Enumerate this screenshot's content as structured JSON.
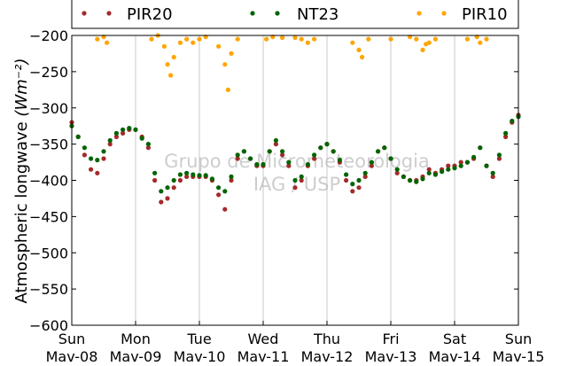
{
  "chart_data": {
    "type": "scatter",
    "title": "",
    "ylabel": "Atmospheric longwave",
    "ylabel_unit": "(Wm⁻²)",
    "ylim": [
      -600,
      -200
    ],
    "yticks": [
      -200,
      -250,
      -300,
      -350,
      -400,
      -450,
      -500,
      -550,
      -600
    ],
    "x_range_days": [
      0,
      7
    ],
    "xtick_labels": [
      {
        "day": "Sun",
        "date": "Mav-08"
      },
      {
        "day": "Mon",
        "date": "Mav-09"
      },
      {
        "day": "Tue",
        "date": "Mav-10"
      },
      {
        "day": "Wed",
        "date": "Mav-11"
      },
      {
        "day": "Thu",
        "date": "Mav-12"
      },
      {
        "day": "Fri",
        "date": "Mav-13"
      },
      {
        "day": "Sat",
        "date": "Mav-14"
      },
      {
        "day": "Sun",
        "date": "Mav-15"
      }
    ],
    "grid": "vertical",
    "legend_position": "top",
    "watermark": [
      "Grupo de Micrometeorologia",
      "IAG / USP"
    ],
    "series": [
      {
        "name": "PIR20",
        "color": "#a52a2a",
        "x": [
          0,
          0.1,
          0.2,
          0.3,
          0.4,
          0.5,
          0.6,
          0.7,
          0.8,
          0.9,
          1.0,
          1.1,
          1.2,
          1.3,
          1.4,
          1.5,
          1.6,
          1.7,
          1.8,
          1.9,
          2.0,
          2.1,
          2.2,
          2.3,
          2.4,
          2.5,
          2.6,
          2.7,
          2.8,
          2.9,
          3.0,
          3.1,
          3.2,
          3.3,
          3.4,
          3.5,
          3.6,
          3.7,
          3.8,
          3.9,
          4.0,
          4.1,
          4.2,
          4.3,
          4.4,
          4.5,
          4.6,
          4.7,
          4.8,
          4.9,
          5.0,
          5.1,
          5.2,
          5.3,
          5.4,
          5.5,
          5.6,
          5.7,
          5.8,
          5.9,
          6.0,
          6.1,
          6.2,
          6.3,
          6.4,
          6.5,
          6.6,
          6.7,
          6.8,
          6.9,
          7.0
        ],
        "y": [
          -320,
          -340,
          -365,
          -385,
          -390,
          -370,
          -350,
          -340,
          -335,
          -330,
          -330,
          -340,
          -355,
          -400,
          -430,
          -425,
          -410,
          -400,
          -395,
          -395,
          -395,
          -395,
          -400,
          -420,
          -440,
          -400,
          -370,
          -360,
          -370,
          -380,
          -380,
          -360,
          -350,
          -365,
          -380,
          -410,
          -400,
          -380,
          -370,
          -355,
          -350,
          -360,
          -375,
          -400,
          -415,
          -410,
          -395,
          -380,
          -360,
          -355,
          -370,
          -390,
          -395,
          -400,
          -400,
          -395,
          -385,
          -390,
          -385,
          -380,
          -380,
          -375,
          -375,
          -370,
          -355,
          -380,
          -395,
          -370,
          -340,
          -320,
          -310
        ]
      },
      {
        "name": "NT23",
        "color": "#006400",
        "x": [
          0,
          0.1,
          0.2,
          0.3,
          0.4,
          0.5,
          0.6,
          0.7,
          0.8,
          0.9,
          1.0,
          1.1,
          1.2,
          1.3,
          1.4,
          1.5,
          1.6,
          1.7,
          1.8,
          1.9,
          2.0,
          2.1,
          2.2,
          2.3,
          2.4,
          2.5,
          2.6,
          2.7,
          2.8,
          2.9,
          3.0,
          3.1,
          3.2,
          3.3,
          3.4,
          3.5,
          3.6,
          3.7,
          3.8,
          3.9,
          4.0,
          4.1,
          4.2,
          4.3,
          4.4,
          4.5,
          4.6,
          4.7,
          4.8,
          4.9,
          5.0,
          5.1,
          5.2,
          5.3,
          5.4,
          5.5,
          5.6,
          5.7,
          5.8,
          5.9,
          6.0,
          6.1,
          6.2,
          6.3,
          6.4,
          6.5,
          6.6,
          6.7,
          6.8,
          6.9,
          7.0
        ],
        "y": [
          -325,
          -340,
          -355,
          -370,
          -372,
          -360,
          -345,
          -335,
          -330,
          -328,
          -330,
          -342,
          -350,
          -390,
          -415,
          -410,
          -400,
          -392,
          -390,
          -392,
          -393,
          -393,
          -398,
          -410,
          -415,
          -395,
          -365,
          -360,
          -370,
          -378,
          -378,
          -360,
          -345,
          -360,
          -375,
          -400,
          -395,
          -378,
          -365,
          -355,
          -350,
          -360,
          -372,
          -392,
          -405,
          -400,
          -390,
          -375,
          -360,
          -355,
          -370,
          -385,
          -395,
          -400,
          -402,
          -398,
          -390,
          -392,
          -388,
          -385,
          -383,
          -380,
          -375,
          -368,
          -355,
          -380,
          -390,
          -365,
          -335,
          -318,
          -312
        ]
      },
      {
        "name": "PIR10",
        "color": "#ffa500",
        "x": [
          0.4,
          0.5,
          0.55,
          1.25,
          1.35,
          1.45,
          1.5,
          1.55,
          1.6,
          1.7,
          1.8,
          1.9,
          2.0,
          2.1,
          2.3,
          2.4,
          2.45,
          2.5,
          2.6,
          3.05,
          3.15,
          3.3,
          3.5,
          3.6,
          3.7,
          3.8,
          4.4,
          4.5,
          4.55,
          4.65,
          5.0,
          5.3,
          5.4,
          5.5,
          5.55,
          5.6,
          5.7,
          6.2,
          6.35,
          6.4,
          6.5
        ],
        "y": [
          -205,
          -202,
          -210,
          -205,
          -200,
          -215,
          -240,
          -255,
          -230,
          -210,
          -205,
          -210,
          -205,
          -202,
          -215,
          -240,
          -275,
          -225,
          -205,
          -205,
          -202,
          -203,
          -203,
          -205,
          -210,
          -205,
          -210,
          -220,
          -230,
          -205,
          -205,
          -202,
          -205,
          -220,
          -212,
          -210,
          -205,
          -205,
          -202,
          -210,
          -205
        ]
      }
    ]
  }
}
